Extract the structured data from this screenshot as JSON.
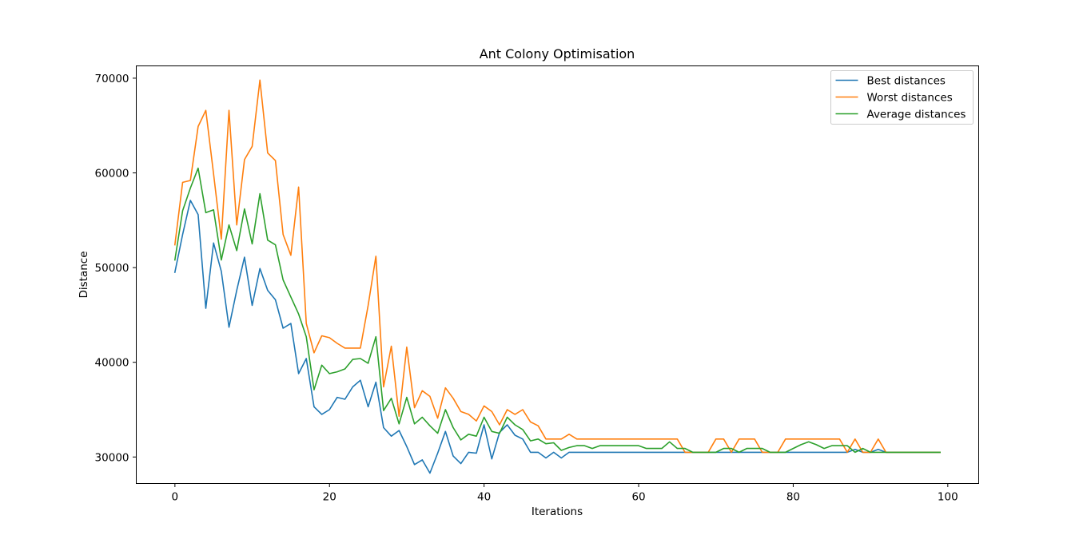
{
  "chart_data": {
    "type": "line",
    "title": "Ant Colony Optimisation",
    "xlabel": "Iterations",
    "ylabel": "Distance",
    "xlim": [
      -5,
      104
    ],
    "ylim": [
      27200,
      71300
    ],
    "xticks": [
      0,
      20,
      40,
      60,
      80,
      100
    ],
    "yticks": [
      30000,
      40000,
      50000,
      60000,
      70000
    ],
    "grid": false,
    "legend_position": "top-right",
    "series": [
      {
        "name": "Best distances",
        "color": "#1f77b4",
        "values": [
          49500,
          53500,
          57100,
          55600,
          45700,
          52600,
          49600,
          43700,
          47600,
          51100,
          46000,
          49900,
          47600,
          46600,
          43600,
          44100,
          38800,
          40400,
          35300,
          34500,
          35000,
          36300,
          36100,
          37400,
          38100,
          35300,
          37900,
          33100,
          32200,
          32800,
          31100,
          29200,
          29700,
          28300,
          30400,
          32700,
          30100,
          29300,
          30500,
          30400,
          33400,
          29800,
          32600,
          33400,
          32300,
          31900,
          30500,
          30500,
          29900,
          30500,
          29900,
          30500,
          30500,
          30500,
          30500,
          30500,
          30500,
          30500,
          30500,
          30500,
          30500,
          30500,
          30500,
          30500,
          30500,
          30500,
          30500,
          30500,
          30500,
          30500,
          30500,
          30500,
          30500,
          30500,
          30500,
          30500,
          30500,
          30500,
          30500,
          30500,
          30500,
          30500,
          30500,
          30500,
          30500,
          30500,
          30500,
          30500,
          30800,
          30500,
          30500,
          30800,
          30500,
          30500,
          30500,
          30500,
          30500,
          30500,
          30500,
          30500
        ]
      },
      {
        "name": "Worst distances",
        "color": "#ff7f0e",
        "values": [
          52400,
          59000,
          59200,
          64900,
          66600,
          59900,
          53000,
          66600,
          54500,
          61400,
          62800,
          69800,
          62100,
          61300,
          53500,
          51300,
          58500,
          44100,
          41000,
          42800,
          42600,
          42000,
          41500,
          41500,
          41500,
          46000,
          51200,
          37400,
          41700,
          34300,
          41600,
          35200,
          37000,
          36400,
          34100,
          37300,
          36200,
          34800,
          34500,
          33800,
          35400,
          34800,
          33400,
          35000,
          34500,
          35000,
          33700,
          33300,
          31900,
          31900,
          31900,
          32400,
          31900,
          31900,
          31900,
          31900,
          31900,
          31900,
          31900,
          31900,
          31900,
          31900,
          31900,
          31900,
          31900,
          31900,
          30500,
          30500,
          30500,
          30500,
          31900,
          31900,
          30500,
          31900,
          31900,
          31900,
          30500,
          30500,
          30500,
          31900,
          31900,
          31900,
          31900,
          31900,
          31900,
          31900,
          31900,
          30500,
          31900,
          30500,
          30500,
          31900,
          30500,
          30500,
          30500,
          30500,
          30500,
          30500,
          30500,
          30500
        ]
      },
      {
        "name": "Average distances",
        "color": "#2ca02c",
        "values": [
          50800,
          56000,
          58400,
          60500,
          55800,
          56100,
          50800,
          54500,
          51800,
          56200,
          52500,
          57800,
          52900,
          52400,
          48700,
          46900,
          45100,
          42700,
          37100,
          39700,
          38800,
          39000,
          39300,
          40300,
          40400,
          39900,
          42700,
          34900,
          36200,
          33500,
          36300,
          33500,
          34200,
          33300,
          32500,
          35000,
          33100,
          31800,
          32400,
          32200,
          34200,
          32700,
          32500,
          34200,
          33400,
          32900,
          31700,
          31900,
          31400,
          31500,
          30700,
          31000,
          31200,
          31200,
          30900,
          31200,
          31200,
          31200,
          31200,
          31200,
          31200,
          30900,
          30900,
          30900,
          31600,
          30900,
          30900,
          30500,
          30500,
          30500,
          30500,
          30900,
          30900,
          30500,
          30900,
          30900,
          30900,
          30500,
          30500,
          30500,
          30900,
          31300,
          31600,
          31300,
          30900,
          31200,
          31200,
          31200,
          30500,
          30900,
          30500,
          30500,
          30500,
          30500,
          30500,
          30500,
          30500,
          30500,
          30500,
          30500
        ]
      }
    ]
  }
}
